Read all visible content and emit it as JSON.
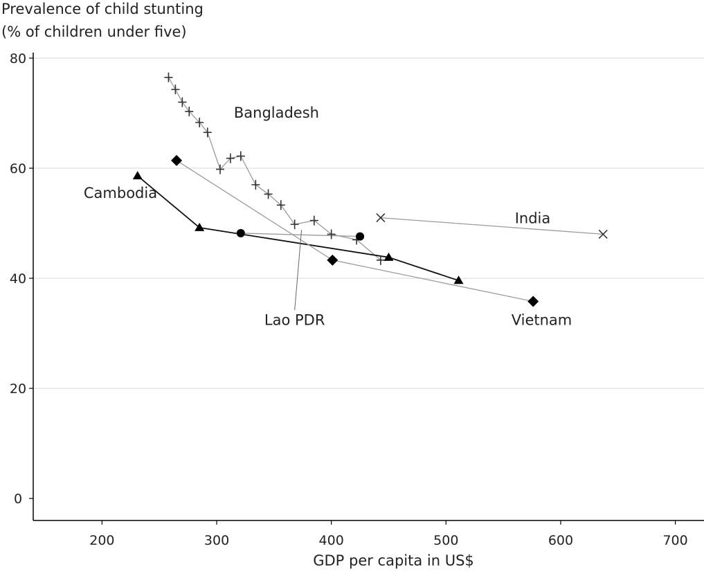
{
  "chart_data": {
    "type": "line",
    "ylabel_line1": "Prevalence of child stunting",
    "ylabel_line2": "(% of children under five)",
    "xlabel": "GDP per capita in US$",
    "xlim": [
      140,
      725
    ],
    "ylim": [
      -4,
      81
    ],
    "xticks": [
      200,
      300,
      400,
      500,
      600,
      700
    ],
    "yticks": [
      0,
      20,
      40,
      60,
      80
    ],
    "grid": "horizontal",
    "series": [
      {
        "name": "Bangladesh",
        "marker": "plus",
        "color": "#9a9a9a",
        "markerColor": "#333333",
        "points": [
          [
            258,
            76.5
          ],
          [
            264,
            74.3
          ],
          [
            270,
            72
          ],
          [
            276,
            70.3
          ],
          [
            285,
            68.3
          ],
          [
            292,
            66.5
          ],
          [
            303,
            59.8
          ],
          [
            312,
            61.8
          ],
          [
            321,
            62.2
          ],
          [
            334,
            57
          ],
          [
            345,
            55.3
          ],
          [
            356,
            53.3
          ],
          [
            368,
            49.8
          ],
          [
            385,
            50.5
          ],
          [
            400,
            48
          ],
          [
            422,
            47
          ],
          [
            443,
            43.3
          ]
        ]
      },
      {
        "name": "Cambodia",
        "marker": "triangle",
        "color": "#111111",
        "markerColor": "#000000",
        "points": [
          [
            231,
            58.6
          ],
          [
            285,
            49.2
          ],
          [
            450,
            43.8
          ],
          [
            511,
            39.6
          ]
        ]
      },
      {
        "name": "India",
        "marker": "x",
        "color": "#9a9a9a",
        "markerColor": "#333333",
        "points": [
          [
            443,
            51
          ],
          [
            637,
            48
          ]
        ]
      },
      {
        "name": "Lao PDR",
        "marker": "circle",
        "color": "#9a9a9a",
        "markerColor": "#000000",
        "points": [
          [
            321,
            48.2
          ],
          [
            425,
            47.6
          ]
        ]
      },
      {
        "name": "Vietnam",
        "marker": "diamond",
        "color": "#9a9a9a",
        "markerColor": "#000000",
        "points": [
          [
            265,
            61.4
          ],
          [
            401,
            43.3
          ],
          [
            576,
            35.8
          ]
        ]
      }
    ],
    "annotations": [
      {
        "series": "Bangladesh",
        "text": "Bangladesh",
        "x": 315,
        "y": 69.2,
        "anchor": "start"
      },
      {
        "series": "Cambodia",
        "text": "Cambodia",
        "x": 184,
        "y": 54.6,
        "anchor": "start"
      },
      {
        "series": "India",
        "text": "India",
        "x": 560,
        "y": 50,
        "anchor": "start"
      },
      {
        "series": "Lao PDR",
        "text": "Lao PDR",
        "x": 368,
        "y": 31.5,
        "anchor": "middle"
      },
      {
        "series": "Vietnam",
        "text": "Vietnam",
        "x": 557,
        "y": 31.5,
        "anchor": "start"
      }
    ],
    "leader_line": {
      "from": [
        368,
        34.2
      ],
      "to": [
        374,
        48.8
      ]
    }
  }
}
